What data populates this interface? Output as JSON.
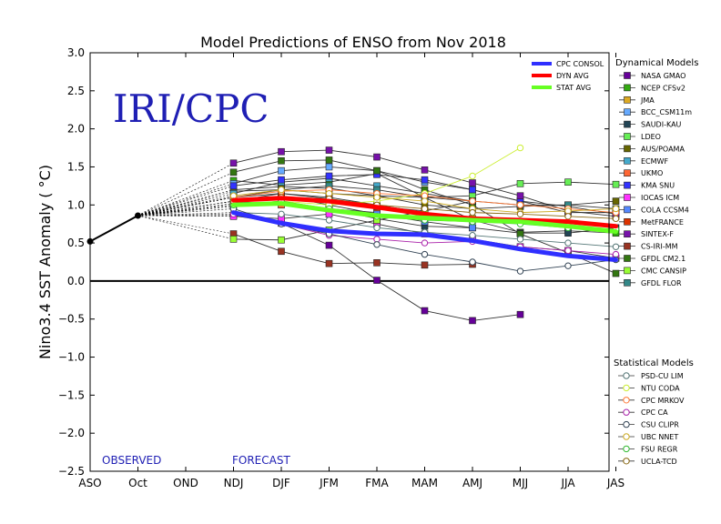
{
  "chart_data": {
    "type": "line",
    "title": "Model Predictions of ENSO from Nov 2018",
    "xlabel": "",
    "ylabel": "Nino3.4 SST Anomaly ( °C)",
    "watermark": "IRI/CPC",
    "observed_label": "OBSERVED",
    "forecast_label": "FORECAST",
    "categories": [
      "ASO",
      "Oct",
      "OND",
      "NDJ",
      "DJF",
      "JFM",
      "FMA",
      "MAM",
      "AMJ",
      "MJJ",
      "JJA",
      "JAS"
    ],
    "ylim": [
      -2.5,
      3.0
    ],
    "yticks": [
      "−2.5",
      "−2.0",
      "−1.5",
      "−1.0",
      "−0.5",
      "0.0",
      "0.5",
      "1.0",
      "1.5",
      "2.0",
      "2.5",
      "3.0"
    ],
    "ytick_values": [
      -2.5,
      -2.0,
      -1.5,
      -1.0,
      -0.5,
      0.0,
      0.5,
      1.0,
      1.5,
      2.0,
      2.5,
      3.0
    ],
    "observed": [
      0.52,
      0.86
    ],
    "consensus": [
      {
        "name": "CPC CONSOL",
        "color": "#2f2fff",
        "values": [
          0.9,
          0.76,
          0.66,
          0.62,
          0.61,
          0.53,
          0.42,
          0.33,
          0.28
        ]
      },
      {
        "name": "DYN AVG",
        "color": "#ff0000",
        "values": [
          1.06,
          1.09,
          1.05,
          0.97,
          0.88,
          0.82,
          0.8,
          0.78,
          0.72
        ]
      },
      {
        "name": "STAT AVG",
        "color": "#66ff22",
        "values": [
          1.0,
          1.02,
          0.93,
          0.86,
          0.83,
          0.8,
          0.78,
          0.72,
          0.65
        ]
      }
    ],
    "dynamical_title": "Dynamical Models",
    "dynamical": [
      {
        "name": "NASA GMAO",
        "color": "#660099",
        "values": [
          0.86,
          0.76,
          0.47,
          0.01,
          -0.39,
          -0.52,
          -0.44
        ]
      },
      {
        "name": "NCEP CFSv2",
        "color": "#33aa11",
        "values": [
          1.32,
          1.26,
          1.3,
          1.41,
          1.1,
          0.8,
          0.64,
          0.66,
          0.63
        ]
      },
      {
        "name": "JMA",
        "color": "#ddaa22",
        "values": [
          1.1,
          1.15,
          1.1,
          1.0,
          0.9,
          0.82
        ]
      },
      {
        "name": "BCC_CSM11m",
        "color": "#66aaff",
        "values": [
          1.28,
          1.45,
          1.5,
          1.45,
          1.3,
          1.2,
          1.05,
          0.98,
          0.88
        ]
      },
      {
        "name": "SAUDI-KAU",
        "color": "#224455",
        "values": [
          0.98,
          1.02,
          0.95,
          0.82,
          0.72,
          0.7,
          0.63,
          0.63,
          0.7
        ]
      },
      {
        "name": "LDEO",
        "color": "#66ee55",
        "values": [
          1.18,
          1.2,
          1.15,
          1.12,
          1.1,
          1.12,
          1.28,
          1.3,
          1.27
        ]
      },
      {
        "name": "AUS/POAMA",
        "color": "#666600",
        "values": [
          1.2,
          1.24,
          1.22,
          1.12,
          1.0,
          0.95,
          0.98,
          1.0,
          1.05
        ]
      },
      {
        "name": "ECMWF",
        "color": "#44aacc",
        "values": [
          1.15,
          1.3,
          1.35,
          1.25,
          1.15,
          1.05
        ]
      },
      {
        "name": "UKMO",
        "color": "#ff6633",
        "values": [
          1.05,
          1.0,
          0.95,
          0.9
        ]
      },
      {
        "name": "KMA SNU",
        "color": "#3333ff",
        "values": [
          1.25,
          1.33,
          1.38,
          1.4,
          1.33,
          1.2,
          1.05,
          0.9,
          0.9
        ]
      },
      {
        "name": "IOCAS ICM",
        "color": "#ff33ff",
        "values": [
          0.85,
          0.82,
          0.88,
          0.75,
          0.62,
          0.55,
          0.45,
          0.4,
          0.3
        ]
      },
      {
        "name": "COLA CCSM4",
        "color": "#5588ff",
        "values": [
          1.02,
          1.12,
          1.0,
          0.88,
          0.78,
          0.7
        ]
      },
      {
        "name": "MetFRANCE",
        "color": "#dd3300",
        "values": [
          1.05,
          1.15,
          1.08,
          0.98,
          0.92
        ]
      },
      {
        "name": "SINTEX-F",
        "color": "#7711aa",
        "values": [
          1.55,
          1.7,
          1.72,
          1.63,
          1.46,
          1.29,
          1.12,
          0.92,
          0.85
        ]
      },
      {
        "name": "CS-IRI-MM",
        "color": "#993322",
        "values": [
          0.62,
          0.39,
          0.23,
          0.24,
          0.21,
          0.22
        ]
      },
      {
        "name": "GFDL CM2.1",
        "color": "#337711",
        "values": [
          1.43,
          1.58,
          1.59,
          1.45,
          1.2,
          1.0,
          0.62,
          0.37,
          0.1
        ]
      },
      {
        "name": "CMC CANSIP",
        "color": "#99ff33",
        "values": [
          0.55,
          0.54,
          0.67,
          0.8,
          0.92,
          1.05
        ]
      },
      {
        "name": "GFDL FLOR",
        "color": "#338888",
        "values": [
          1.1,
          1.2,
          1.25,
          1.2,
          1.1,
          1.05,
          1.0,
          1.0,
          0.95
        ]
      }
    ],
    "statistical_title": "Statistical Models",
    "statistical": [
      {
        "name": "PSD-CU LIM",
        "color": "#557777",
        "values": [
          0.9,
          0.88,
          0.8,
          0.7,
          0.64,
          0.6,
          0.55,
          0.5,
          0.45
        ]
      },
      {
        "name": "NTU CODA",
        "color": "#ccee33",
        "values": [
          1.0,
          1.05,
          1.0,
          1.05,
          1.15,
          1.38,
          1.75
        ]
      },
      {
        "name": "CPC MRKOV",
        "color": "#ff7733",
        "values": [
          1.1,
          1.18,
          1.2,
          1.15,
          1.12,
          1.05,
          1.0,
          0.95,
          0.9
        ]
      },
      {
        "name": "CPC CA",
        "color": "#aa22aa",
        "values": [
          0.88,
          0.75,
          0.6,
          0.55,
          0.5,
          0.52,
          0.45,
          0.4,
          0.35
        ]
      },
      {
        "name": "CSU CLIPR",
        "color": "#334455",
        "values": [
          0.95,
          0.75,
          0.62,
          0.48,
          0.35,
          0.25,
          0.13,
          0.2,
          0.28
        ]
      },
      {
        "name": "UBC NNET",
        "color": "#ccaa22",
        "values": [
          1.12,
          1.2,
          1.15,
          1.1,
          1.05,
          0.95,
          0.9,
          0.92,
          0.95
        ]
      },
      {
        "name": "FSU REGR",
        "color": "#33bb33",
        "values": [
          1.0,
          1.05,
          0.95,
          0.85,
          0.8,
          0.78,
          0.75,
          0.7,
          0.68
        ]
      },
      {
        "name": "UCLA-TCD",
        "color": "#886611",
        "values": [
          1.05,
          1.1,
          1.08,
          1.0,
          0.95,
          0.9,
          0.88,
          0.85,
          0.82
        ]
      }
    ]
  }
}
